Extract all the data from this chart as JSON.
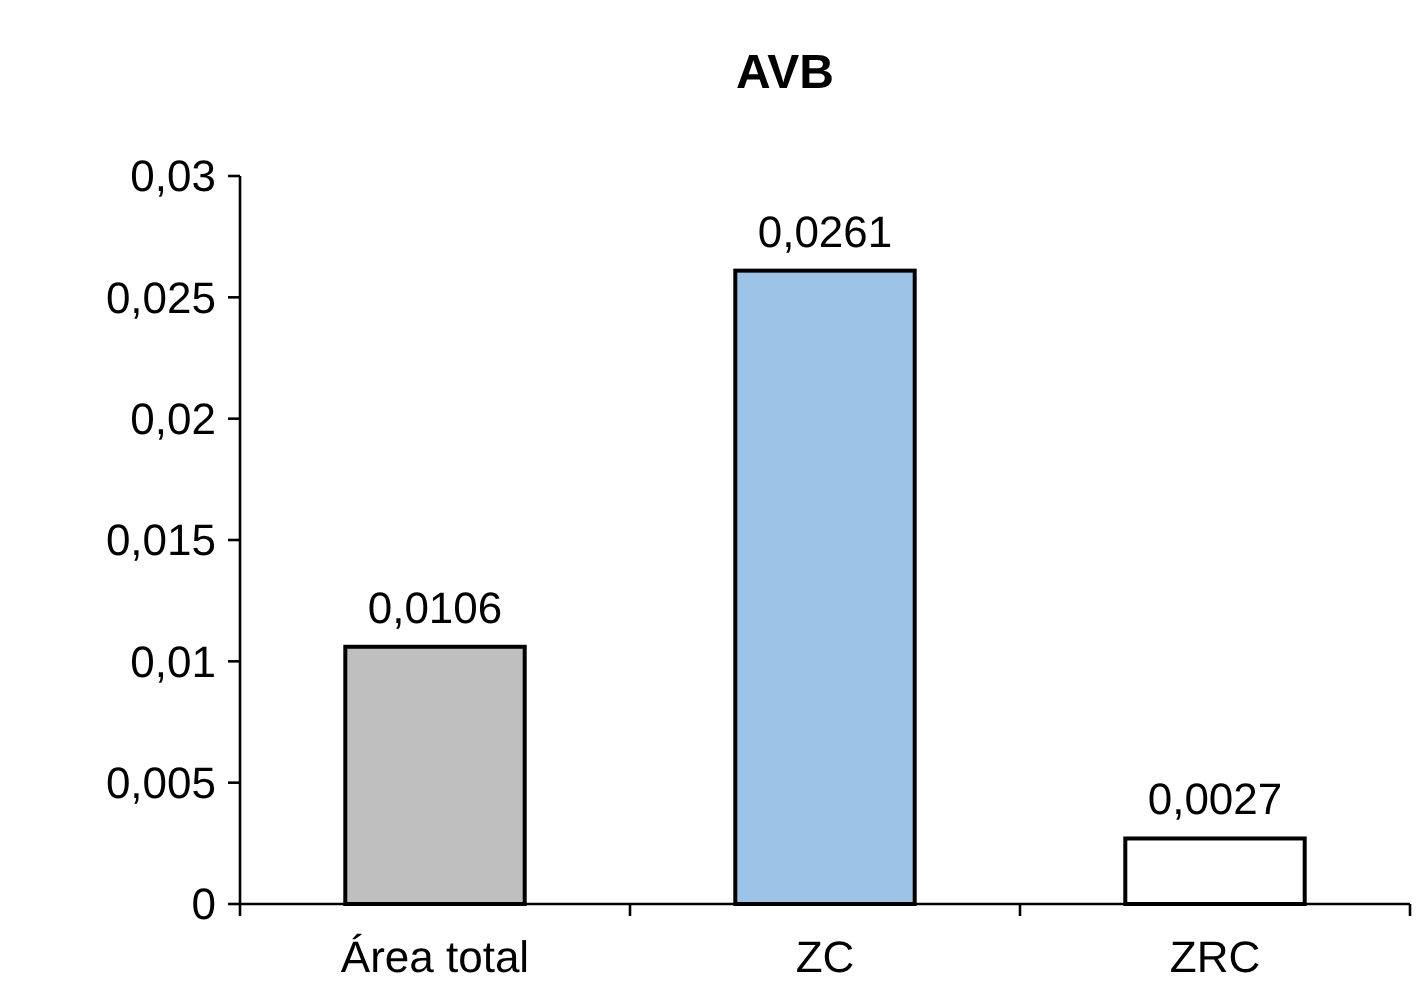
{
  "chart_data": {
    "type": "bar",
    "title": "AVB",
    "categories": [
      "Área total",
      "ZC",
      "ZRC"
    ],
    "values": [
      0.0106,
      0.0261,
      0.0027
    ],
    "colors": [
      "#bfbfbf",
      "#9dc3e6",
      "#ffffff"
    ],
    "value_labels": [
      "0,0106",
      "0,0261",
      "0,0027"
    ],
    "ylim": [
      0,
      0.03
    ],
    "yticks": [
      0,
      {
        "value": 0.005,
        "label": "0,005"
      },
      {
        "value": 0.01,
        "label": "0,01"
      },
      {
        "value": 0.015,
        "label": "0,015"
      },
      {
        "value": 0.02,
        "label": "0,02"
      },
      {
        "value": 0.025,
        "label": "0,025"
      },
      {
        "value": 0.03,
        "label": "0,03"
      }
    ],
    "grid": false
  }
}
